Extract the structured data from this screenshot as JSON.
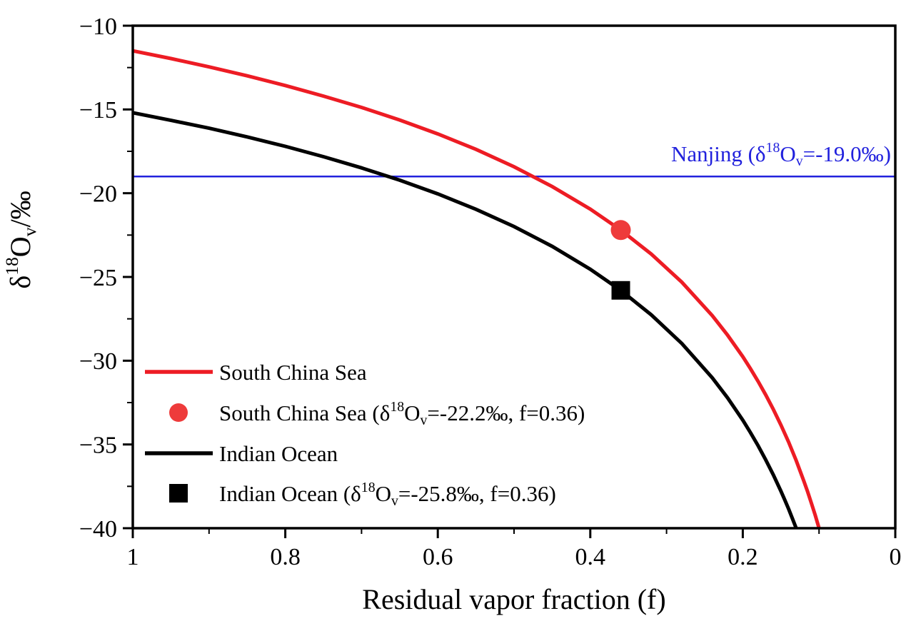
{
  "chart_data": {
    "type": "line",
    "title": "",
    "xlabel": "Residual vapor fraction (f)",
    "ylabel": "δ18Ov/‰",
    "ylabel_tokens": [
      {
        "t": "δ"
      },
      {
        "t": "18",
        "style": "sup"
      },
      {
        "t": "O"
      },
      {
        "t": "v",
        "style": "sub"
      },
      {
        "t": "/‰"
      }
    ],
    "x_axis": {
      "range": [
        1,
        0
      ],
      "major_ticks": [
        1,
        0.8,
        0.6,
        0.4,
        0.2,
        0
      ],
      "tick_labels": [
        "1",
        "0.8",
        "0.6",
        "0.4",
        "0.2",
        "0"
      ],
      "minor_ticks": [
        0.9,
        0.7,
        0.5,
        0.3,
        0.1
      ],
      "grid": false
    },
    "y_axis": {
      "range": [
        -10,
        -40
      ],
      "major_ticks": [
        -10,
        -15,
        -20,
        -25,
        -30,
        -35,
        -40
      ],
      "tick_labels": [
        "−10",
        "−15",
        "−20",
        "−25",
        "−30",
        "−35",
        "−40"
      ],
      "minor_ticks": [
        -12.5,
        -17.5,
        -22.5,
        -27.5,
        -32.5,
        -37.5
      ],
      "grid": false
    },
    "series": [
      {
        "name": "South China Sea",
        "color": "#ed1c24",
        "width": 5,
        "x": [
          1.0,
          0.95,
          0.9,
          0.85,
          0.8,
          0.75,
          0.7,
          0.65,
          0.6,
          0.55,
          0.5,
          0.45,
          0.4,
          0.36,
          0.32,
          0.28,
          0.24,
          0.22,
          0.2,
          0.19,
          0.18,
          0.17,
          0.16,
          0.15,
          0.14,
          0.13,
          0.12,
          0.115,
          0.11,
          0.105,
          0.1
        ],
        "y": [
          -11.5,
          -11.96,
          -12.46,
          -12.99,
          -13.57,
          -14.2,
          -14.88,
          -15.63,
          -16.46,
          -17.38,
          -18.42,
          -19.6,
          -20.95,
          -22.2,
          -23.63,
          -25.31,
          -27.31,
          -28.47,
          -29.76,
          -30.47,
          -31.23,
          -32.03,
          -32.9,
          -33.84,
          -34.85,
          -35.96,
          -37.17,
          -37.82,
          -38.51,
          -39.23,
          -40.0
        ]
      },
      {
        "name": "Indian Ocean",
        "color": "#000000",
        "width": 5,
        "x": [
          1.0,
          0.95,
          0.9,
          0.85,
          0.8,
          0.75,
          0.7,
          0.65,
          0.6,
          0.55,
          0.5,
          0.45,
          0.4,
          0.36,
          0.32,
          0.28,
          0.24,
          0.22,
          0.2,
          0.19,
          0.18,
          0.17,
          0.16,
          0.15,
          0.145,
          0.14,
          0.135,
          0.13
        ],
        "y": [
          -15.2,
          -15.65,
          -16.12,
          -16.64,
          -17.2,
          -17.82,
          -18.49,
          -19.22,
          -20.04,
          -20.96,
          -21.99,
          -23.17,
          -24.54,
          -25.8,
          -27.26,
          -28.97,
          -31.02,
          -32.21,
          -33.55,
          -34.29,
          -35.07,
          -35.91,
          -36.81,
          -37.79,
          -38.3,
          -38.84,
          -39.41,
          -40.0
        ]
      }
    ],
    "reference_line": {
      "y": -19.0,
      "color": "#2121dd",
      "label": "Nanjing (δ18Ov=-19.0‰)",
      "label_tokens": [
        {
          "t": "Nanjing (δ"
        },
        {
          "t": "18",
          "style": "sup"
        },
        {
          "t": "O"
        },
        {
          "t": "v",
          "style": "sub"
        },
        {
          "t": "=-19.0‰)"
        }
      ]
    },
    "markers": [
      {
        "shape": "circle",
        "x": 0.36,
        "y": -22.2,
        "color": "#ee3b3b",
        "size": 14
      },
      {
        "shape": "square",
        "x": 0.36,
        "y": -25.8,
        "color": "#000000",
        "size": 13
      }
    ],
    "legend": {
      "position": "lower-left",
      "items": [
        {
          "swatch": "line",
          "color": "#ed1c24",
          "label": "South China Sea",
          "label_tokens": [
            {
              "t": "South China Sea"
            }
          ]
        },
        {
          "swatch": "circle",
          "color": "#ee3b3b",
          "label": "South China Sea (δ18Ov=-22.2‰, f=0.36)",
          "label_tokens": [
            {
              "t": "South China Sea (δ"
            },
            {
              "t": "18",
              "style": "sup"
            },
            {
              "t": "O"
            },
            {
              "t": "v",
              "style": "sub"
            },
            {
              "t": "=-22.2‰, f=0.36)"
            }
          ]
        },
        {
          "swatch": "line",
          "color": "#000000",
          "label": "Indian Ocean",
          "label_tokens": [
            {
              "t": "Indian Ocean"
            }
          ]
        },
        {
          "swatch": "square",
          "color": "#000000",
          "label": "Indian Ocean (δ18Ov=-25.8‰, f=0.36)",
          "label_tokens": [
            {
              "t": "Indian Ocean (δ"
            },
            {
              "t": "18",
              "style": "sup"
            },
            {
              "t": "O"
            },
            {
              "t": "v",
              "style": "sub"
            },
            {
              "t": "=-25.8‰, f=0.36)"
            }
          ]
        }
      ]
    }
  }
}
